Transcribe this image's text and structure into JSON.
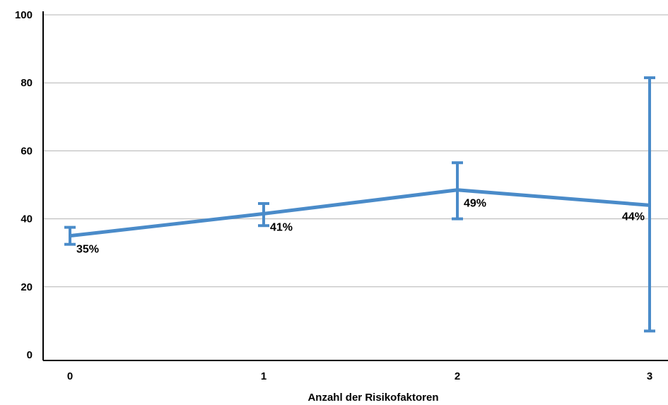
{
  "chart_data": {
    "type": "line",
    "title": "",
    "xlabel": "Anzahl der Risikofaktoren",
    "ylabel": "",
    "categories": [
      "0",
      "1",
      "2",
      "3"
    ],
    "yticks": [
      "0",
      "20",
      "40",
      "60",
      "80",
      "100"
    ],
    "ylim": [
      0,
      100
    ],
    "grid": true,
    "legend": "none",
    "series": [
      {
        "values": [
          35,
          41.5,
          48.5,
          44
        ],
        "labels": [
          "35%",
          "41%",
          "49%",
          "44%"
        ],
        "error_low": [
          32.5,
          38,
          40,
          7
        ],
        "error_high": [
          37.5,
          44.5,
          56.5,
          81.5
        ],
        "color": "#4a8bc9"
      }
    ]
  }
}
